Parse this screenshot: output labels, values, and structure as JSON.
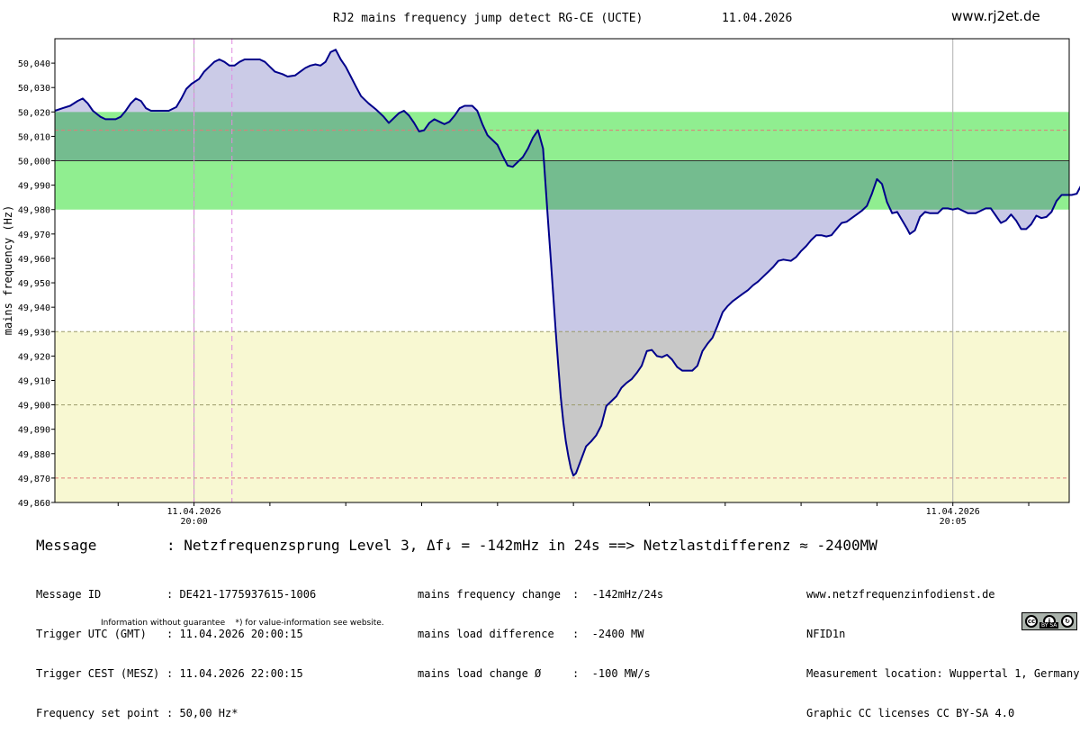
{
  "header": {
    "title": "RJ2 mains frequency jump detect RG-CE (UCTE)",
    "date": "11.04.2026",
    "site": "www.rj2et.de"
  },
  "chart_data": {
    "type": "line",
    "title": "RJ2 mains frequency jump detect RG-CE (UCTE)",
    "ylabel": "mains frequency (Hz)",
    "ylim": [
      49.86,
      50.05
    ],
    "yticks": [
      "50,040",
      "50,030",
      "50,020",
      "50,010",
      "50,000",
      "49,990",
      "49,980",
      "49,970",
      "49,960",
      "49,950",
      "49,940",
      "49,930",
      "49,920",
      "49,910",
      "49,900",
      "49,890",
      "49,880",
      "49,870",
      "49,860"
    ],
    "xlim": [
      "19:59:05",
      "20:05:46"
    ],
    "xticks": [
      {
        "time": "20:00",
        "date": "11.04.2026",
        "label": "11.04.2026\n20:00"
      },
      {
        "time": "20:05",
        "date": "11.04.2026",
        "label": "11.04.2026\n20:05"
      }
    ],
    "set_point": 50.0,
    "deadband": [
      49.98,
      50.02
    ],
    "alert_band_top": 49.93,
    "dashed_lines": [
      50.0125,
      49.9,
      49.87
    ],
    "trigger_markers": [
      "20:00:00",
      "20:00:15"
    ],
    "series": [
      {
        "values_hz": [
          [
            0,
            50.0205
          ],
          [
            3,
            50.0215
          ],
          [
            6,
            50.0225
          ],
          [
            9,
            50.0245
          ],
          [
            11,
            50.0255
          ],
          [
            13,
            50.0235
          ],
          [
            15,
            50.0205
          ],
          [
            18,
            50.018
          ],
          [
            20,
            50.017
          ],
          [
            24,
            50.017
          ],
          [
            26,
            50.018
          ],
          [
            28,
            50.0205
          ],
          [
            30,
            50.0235
          ],
          [
            32,
            50.0255
          ],
          [
            34,
            50.0245
          ],
          [
            36,
            50.0215
          ],
          [
            38,
            50.0205
          ],
          [
            45,
            50.0205
          ],
          [
            48,
            50.022
          ],
          [
            50,
            50.0255
          ],
          [
            52,
            50.0295
          ],
          [
            54,
            50.0315
          ],
          [
            57,
            50.0335
          ],
          [
            59,
            50.0365
          ],
          [
            61,
            50.0385
          ],
          [
            63,
            50.0405
          ],
          [
            65,
            50.0415
          ],
          [
            67,
            50.0405
          ],
          [
            69,
            50.039
          ],
          [
            71,
            50.039
          ],
          [
            73,
            50.0405
          ],
          [
            75,
            50.0415
          ],
          [
            81,
            50.0415
          ],
          [
            83,
            50.0405
          ],
          [
            85,
            50.0385
          ],
          [
            87,
            50.0365
          ],
          [
            90,
            50.0355
          ],
          [
            92,
            50.0345
          ],
          [
            95,
            50.035
          ],
          [
            97,
            50.0365
          ],
          [
            99,
            50.038
          ],
          [
            101,
            50.039
          ],
          [
            103,
            50.0395
          ],
          [
            105,
            50.039
          ],
          [
            107,
            50.0405
          ],
          [
            109,
            50.0445
          ],
          [
            111,
            50.0455
          ],
          [
            113,
            50.0415
          ],
          [
            115,
            50.0385
          ],
          [
            117,
            50.0345
          ],
          [
            119,
            50.0305
          ],
          [
            121,
            50.0265
          ],
          [
            124,
            50.0235
          ],
          [
            127,
            50.021
          ],
          [
            130,
            50.018
          ],
          [
            132,
            50.0155
          ],
          [
            134,
            50.0175
          ],
          [
            136,
            50.0195
          ],
          [
            138,
            50.0205
          ],
          [
            140,
            50.0185
          ],
          [
            142,
            50.0155
          ],
          [
            144,
            50.012
          ],
          [
            146,
            50.0125
          ],
          [
            148,
            50.0155
          ],
          [
            150,
            50.017
          ],
          [
            152,
            50.016
          ],
          [
            154,
            50.015
          ],
          [
            156,
            50.016
          ],
          [
            158,
            50.0185
          ],
          [
            160,
            50.0215
          ],
          [
            162,
            50.0225
          ],
          [
            165,
            50.0225
          ],
          [
            167,
            50.0205
          ],
          [
            169,
            50.015
          ],
          [
            171,
            50.0105
          ],
          [
            173,
            50.0085
          ],
          [
            175,
            50.0065
          ],
          [
            177,
            50.002
          ],
          [
            179,
            49.998
          ],
          [
            181,
            49.9975
          ],
          [
            183,
            49.9995
          ],
          [
            185,
            50.0015
          ],
          [
            187,
            50.005
          ],
          [
            189,
            50.0095
          ],
          [
            191,
            50.0125
          ],
          [
            193,
            50.005
          ],
          [
            194,
            49.99
          ],
          [
            195,
            49.975
          ],
          [
            196,
            49.96
          ],
          [
            197,
            49.945
          ],
          [
            198,
            49.93
          ],
          [
            199,
            49.916
          ],
          [
            200,
            49.903
          ],
          [
            201,
            49.893
          ],
          [
            202,
            49.885
          ],
          [
            203,
            49.879
          ],
          [
            204,
            49.874
          ],
          [
            205,
            49.871
          ],
          [
            206,
            49.872
          ],
          [
            208,
            49.8775
          ],
          [
            210,
            49.883
          ],
          [
            212,
            49.885
          ],
          [
            214,
            49.8875
          ],
          [
            216,
            49.8915
          ],
          [
            218,
            49.8995
          ],
          [
            220,
            49.9015
          ],
          [
            222,
            49.9035
          ],
          [
            224,
            49.907
          ],
          [
            226,
            49.909
          ],
          [
            228,
            49.9105
          ],
          [
            230,
            49.913
          ],
          [
            232,
            49.916
          ],
          [
            234,
            49.922
          ],
          [
            236,
            49.9225
          ],
          [
            238,
            49.92
          ],
          [
            240,
            49.9195
          ],
          [
            242,
            49.9205
          ],
          [
            244,
            49.9185
          ],
          [
            246,
            49.9155
          ],
          [
            248,
            49.914
          ],
          [
            252,
            49.914
          ],
          [
            254,
            49.916
          ],
          [
            256,
            49.922
          ],
          [
            258,
            49.925
          ],
          [
            260,
            49.9275
          ],
          [
            262,
            49.9325
          ],
          [
            264,
            49.938
          ],
          [
            266,
            49.9405
          ],
          [
            268,
            49.9425
          ],
          [
            270,
            49.944
          ],
          [
            272,
            49.9455
          ],
          [
            274,
            49.947
          ],
          [
            276,
            49.949
          ],
          [
            278,
            49.9505
          ],
          [
            280,
            49.9525
          ],
          [
            282,
            49.9545
          ],
          [
            284,
            49.9565
          ],
          [
            286,
            49.959
          ],
          [
            288,
            49.9595
          ],
          [
            291,
            49.959
          ],
          [
            293,
            49.9605
          ],
          [
            295,
            49.963
          ],
          [
            297,
            49.965
          ],
          [
            299,
            49.9675
          ],
          [
            301,
            49.9695
          ],
          [
            303,
            49.9695
          ],
          [
            305,
            49.969
          ],
          [
            307,
            49.9695
          ],
          [
            309,
            49.972
          ],
          [
            311,
            49.9745
          ],
          [
            313,
            49.975
          ],
          [
            315,
            49.9765
          ],
          [
            317,
            49.978
          ],
          [
            319,
            49.9795
          ],
          [
            321,
            49.9815
          ],
          [
            323,
            49.9865
          ],
          [
            325,
            49.9925
          ],
          [
            327,
            49.9905
          ],
          [
            329,
            49.983
          ],
          [
            331,
            49.9785
          ],
          [
            333,
            49.979
          ],
          [
            335,
            49.9755
          ],
          [
            337,
            49.972
          ],
          [
            338,
            49.97
          ],
          [
            340,
            49.9715
          ],
          [
            342,
            49.977
          ],
          [
            344,
            49.979
          ],
          [
            346,
            49.9785
          ],
          [
            349,
            49.9785
          ],
          [
            351,
            49.9805
          ],
          [
            353,
            49.9805
          ],
          [
            355,
            49.98
          ],
          [
            357,
            49.9805
          ],
          [
            359,
            49.9795
          ],
          [
            361,
            49.9785
          ],
          [
            364,
            49.9785
          ],
          [
            366,
            49.9795
          ],
          [
            368,
            49.9805
          ],
          [
            370,
            49.9805
          ],
          [
            372,
            49.9775
          ],
          [
            374,
            49.9745
          ],
          [
            376,
            49.9755
          ],
          [
            378,
            49.978
          ],
          [
            380,
            49.9755
          ],
          [
            382,
            49.972
          ],
          [
            384,
            49.972
          ],
          [
            386,
            49.974
          ],
          [
            388,
            49.9775
          ],
          [
            390,
            49.9765
          ],
          [
            392,
            49.977
          ],
          [
            394,
            49.979
          ],
          [
            396,
            49.9835
          ],
          [
            398,
            49.986
          ],
          [
            402,
            49.986
          ],
          [
            404,
            49.9865
          ],
          [
            406,
            49.9905
          ],
          [
            408,
            49.9945
          ],
          [
            410,
            49.9955
          ],
          [
            412,
            49.9945
          ],
          [
            414,
            49.991
          ],
          [
            416,
            49.9875
          ],
          [
            418,
            49.985
          ],
          [
            420,
            49.982
          ],
          [
            422,
            49.979
          ],
          [
            426,
            49.979
          ],
          [
            428,
            49.9775
          ]
        ]
      }
    ]
  },
  "message": {
    "label": "Message",
    "text": ": Netzfrequenzsprung Level 3, Δf↓ = -142mHz in 24s ==> Netzlastdifferenz ≈ -2400MW"
  },
  "info_left": [
    {
      "label": "Message ID",
      "value": ": DE421-1775937615-1006"
    },
    {
      "label": "Trigger UTC (GMT)",
      "value": ": 11.04.2026 20:00:15"
    },
    {
      "label": "Trigger CEST (MESZ)",
      "value": ": 11.04.2026 22:00:15"
    },
    {
      "label": "Frequency set point",
      "value": ": 50,00 Hz*"
    }
  ],
  "info_mid": [
    {
      "label": "mains frequency change",
      "value": ":  -142mHz/24s"
    },
    {
      "label": "mains load difference",
      "value": ":  -2400 MW"
    },
    {
      "label": "mains load change Ø",
      "value": ":  -100 MW/s"
    }
  ],
  "info_right": [
    "www.netzfrequenzinfodienst.de",
    "NFID1n",
    "Measurement location: Wuppertal 1, Germany",
    "Graphic CC licenses CC BY-SA 4.0"
  ],
  "footer": "Information without guarantee    *) for value-information see website.",
  "license_badge": {
    "text": "BY  SA",
    "icons": [
      "cc-icon",
      "by-icon",
      "sa-icon"
    ]
  },
  "colors": {
    "line": "#00008b",
    "fill_above": "#c8c8e6",
    "fill_below": "#c8c8c8",
    "deadband": "#90ee90",
    "deadband_overlap": "#74bc8f",
    "alert_band": "#f8f8d2",
    "trigger_marker": "#e08ae0",
    "dashed_red": "#e07a7a"
  }
}
